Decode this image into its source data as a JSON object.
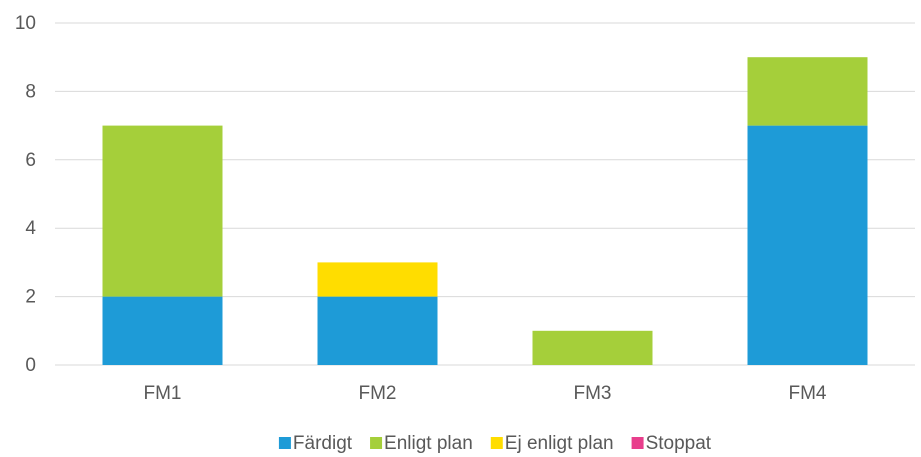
{
  "chart_data": {
    "type": "stacked_bar",
    "categories": [
      "FM1",
      "FM2",
      "FM3",
      "FM4"
    ],
    "series": [
      {
        "name": "Färdigt",
        "color": "#1e9bd7",
        "values": [
          2,
          2,
          0,
          7
        ]
      },
      {
        "name": "Enligt plan",
        "color": "#a5cf3a",
        "values": [
          5,
          0,
          1,
          2
        ]
      },
      {
        "name": "Ej enligt plan",
        "color": "#ffdd00",
        "values": [
          0,
          1,
          0,
          0
        ]
      },
      {
        "name": "Stoppat",
        "color": "#e83e8c",
        "values": [
          0,
          0,
          0,
          0
        ]
      }
    ],
    "ylim": [
      0,
      10
    ],
    "yticks": [
      0,
      2,
      4,
      6,
      8,
      10
    ],
    "grid": true,
    "legend": "bottom"
  }
}
